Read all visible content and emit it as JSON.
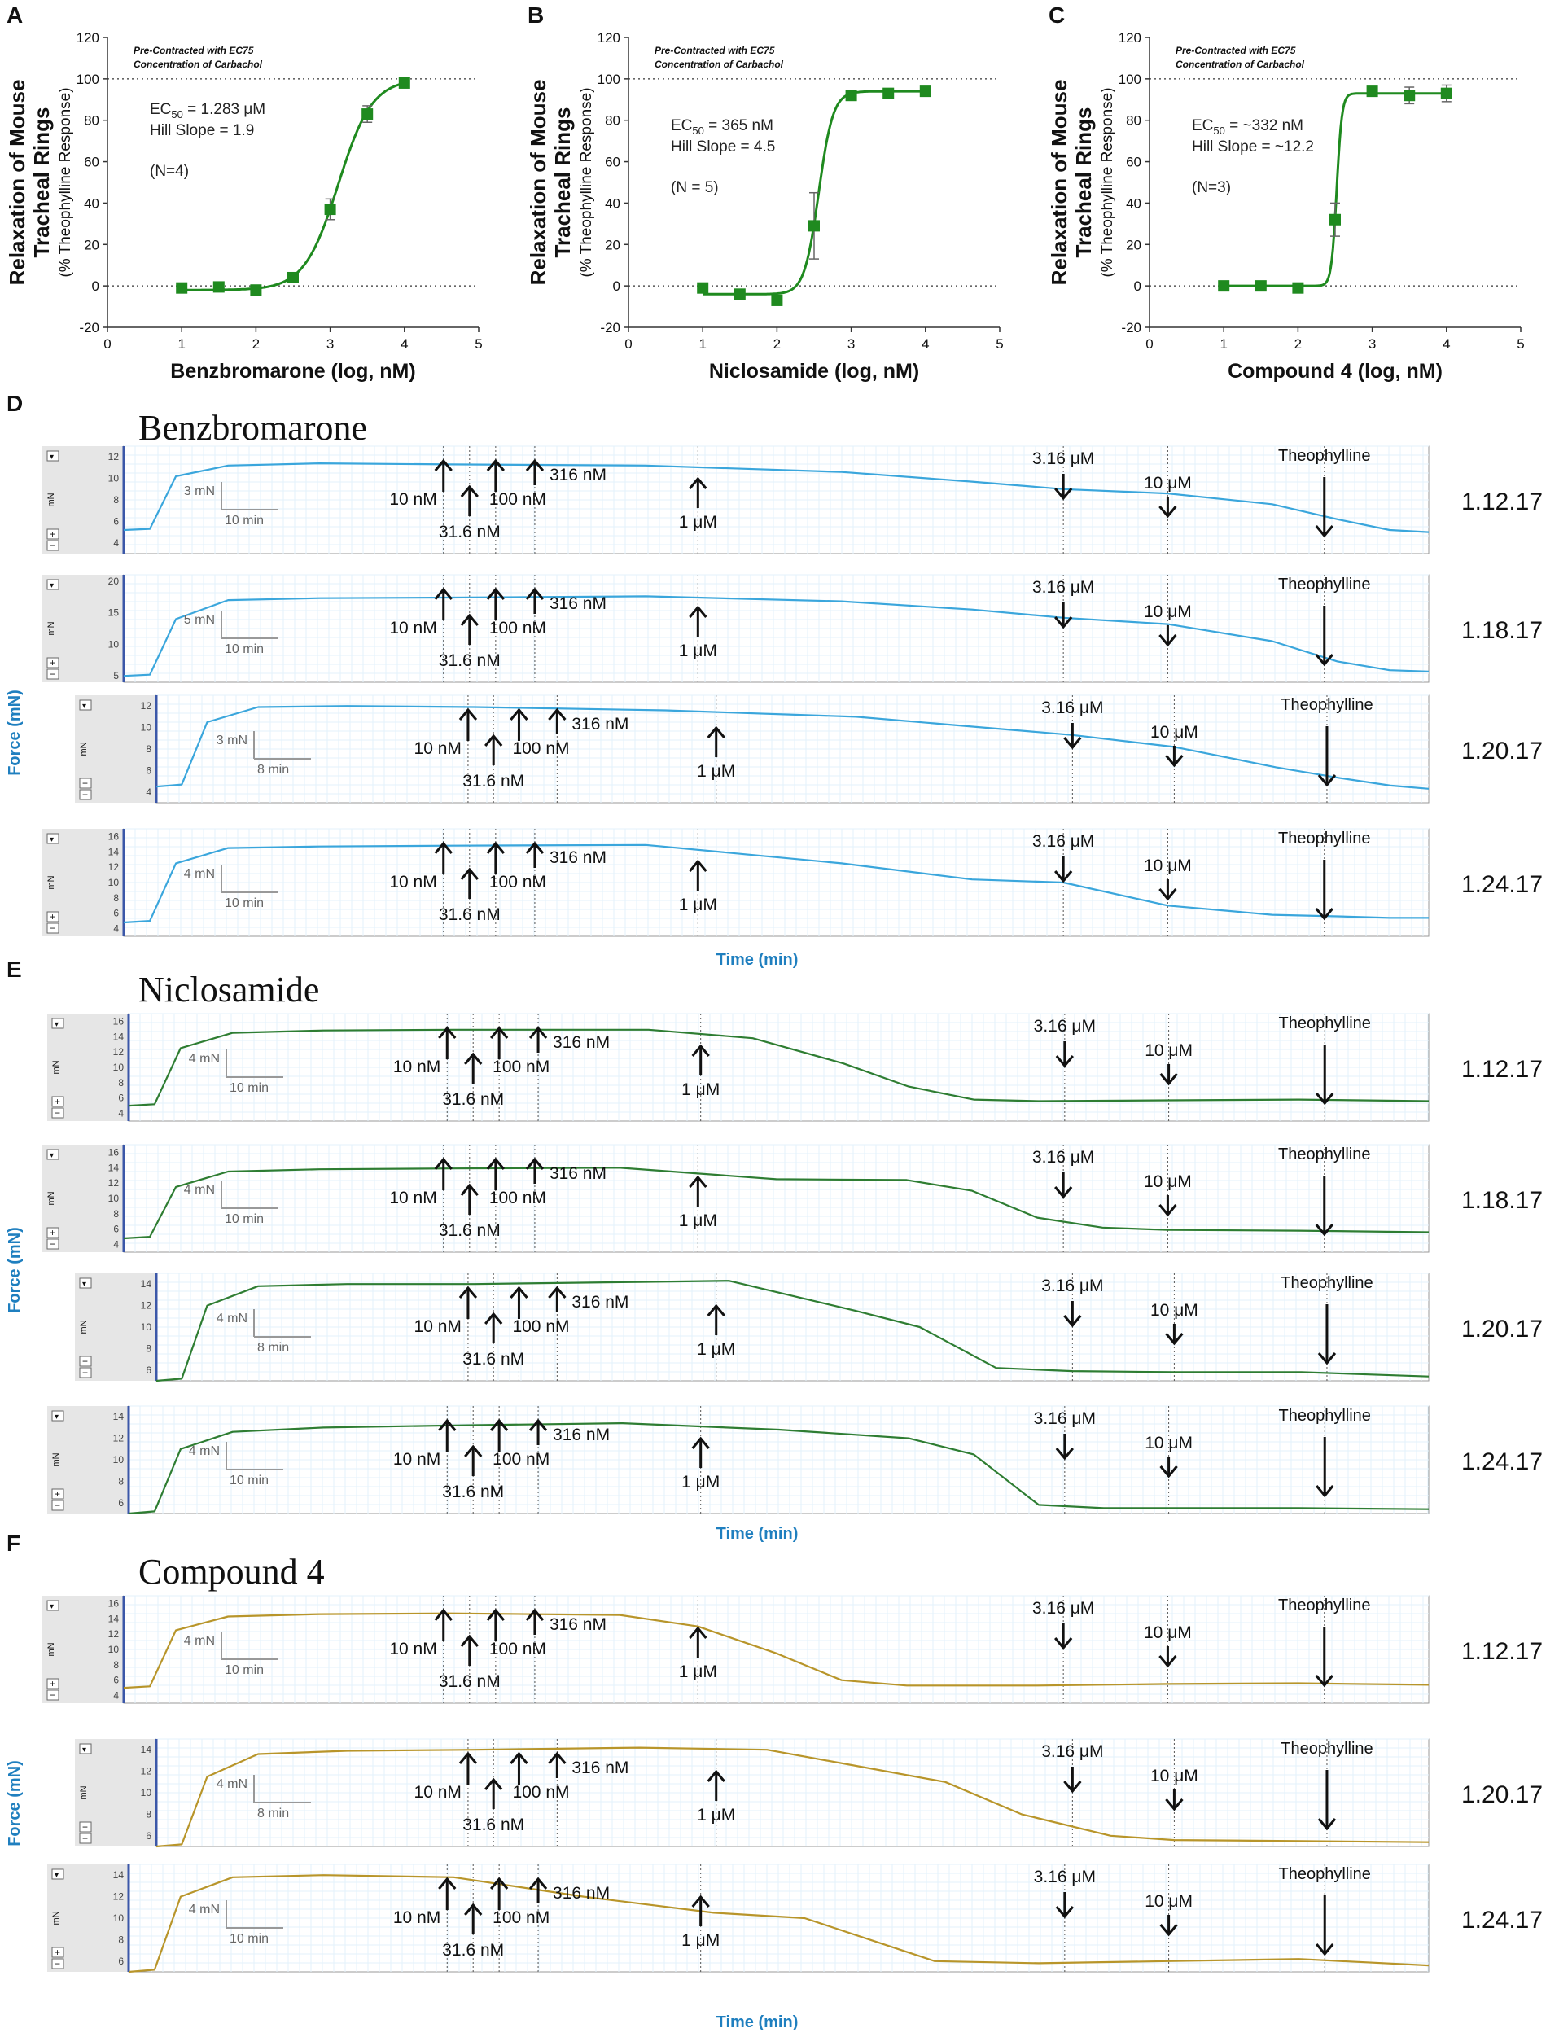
{
  "colors": {
    "green": "#1f8a1f",
    "marker": "#1f8a1f",
    "blue": "#3aa6dc",
    "trace_green": "#2e7d32",
    "trace_gold": "#b8952a",
    "axis_blue": "#1f7fbf",
    "grid": "#e3f2fb",
    "panel_gray": "#e6e6e6"
  },
  "panels": {
    "A": {
      "letter": "A"
    },
    "B": {
      "letter": "B"
    },
    "C": {
      "letter": "C"
    },
    "D": {
      "letter": "D",
      "title": "Benzbromarone"
    },
    "E": {
      "letter": "E",
      "title": "Niclosamide"
    },
    "F": {
      "letter": "F",
      "title": "Compound 4"
    }
  },
  "common": {
    "ylabel_line1": "Relaxation of Mouse",
    "ylabel_line2": "Tracheal Rings",
    "ylabel_line3": "(% Theophylline Response)",
    "precontract_line1": "Pre-Contracted with EC75",
    "precontract_line2": "Concentration of Carbachol",
    "trace_ylabel": "Force (mN)",
    "trace_xlabel": "Time (min)",
    "unit_mn": "mN",
    "plus": "+",
    "minus": "−",
    "dropdown": "▾",
    "theophylline": "Theophylline"
  },
  "doses": [
    "10 nM",
    "31.6 nM",
    "100 nM",
    "316 nM",
    "1 μM",
    "3.16 μM",
    "10 μM"
  ],
  "chart_data": [
    {
      "type": "scatter",
      "id": "A",
      "title": "",
      "xlabel": "Benzbromarone (log, nM)",
      "ylabel": "Relaxation of Mouse Tracheal Rings (% Theophylline Response)",
      "xlim": [
        0,
        5
      ],
      "ylim": [
        -20,
        120
      ],
      "xticks": [
        0,
        1,
        2,
        3,
        4,
        5
      ],
      "yticks": [
        -20,
        0,
        20,
        40,
        60,
        80,
        100,
        120
      ],
      "points": [
        {
          "x": 1.0,
          "y": -1,
          "err": 1
        },
        {
          "x": 1.5,
          "y": -0.5,
          "err": 1
        },
        {
          "x": 2.0,
          "y": -2,
          "err": 1
        },
        {
          "x": 2.5,
          "y": 4,
          "err": 1
        },
        {
          "x": 3.0,
          "y": 37,
          "err": 5
        },
        {
          "x": 3.5,
          "y": 83,
          "err": 4
        },
        {
          "x": 4.0,
          "y": 98,
          "err": 1
        }
      ],
      "fit": {
        "bottom": -2,
        "top": 100,
        "logEC50": 3.108,
        "hill": 1.9
      },
      "ref_lines": [
        0,
        100
      ],
      "annotation": {
        "ec50_label": "EC",
        "ec50_sub": "50",
        "ec50_value": " = 1.283 μM",
        "hill": "Hill Slope = 1.9",
        "n": "(N=4)"
      }
    },
    {
      "type": "scatter",
      "id": "B",
      "title": "",
      "xlabel": "Niclosamide (log, nM)",
      "ylabel": "Relaxation of Mouse Tracheal Rings (% Theophylline Response)",
      "xlim": [
        0,
        5
      ],
      "ylim": [
        -20,
        120
      ],
      "xticks": [
        0,
        1,
        2,
        3,
        4,
        5
      ],
      "yticks": [
        -20,
        0,
        20,
        40,
        60,
        80,
        100,
        120
      ],
      "points": [
        {
          "x": 1.0,
          "y": -1,
          "err": 2
        },
        {
          "x": 1.5,
          "y": -4,
          "err": 2
        },
        {
          "x": 2.0,
          "y": -7,
          "err": 2
        },
        {
          "x": 2.5,
          "y": 29,
          "err": 16
        },
        {
          "x": 3.0,
          "y": 92,
          "err": 2
        },
        {
          "x": 3.5,
          "y": 93,
          "err": 1
        },
        {
          "x": 4.0,
          "y": 94,
          "err": 1
        }
      ],
      "fit": {
        "bottom": -4,
        "top": 94,
        "logEC50": 2.562,
        "hill": 4.5
      },
      "ref_lines": [
        0,
        100
      ],
      "annotation": {
        "ec50_label": "EC",
        "ec50_sub": "50",
        "ec50_value": " = 365 nM",
        "hill": "Hill Slope = 4.5",
        "n": "(N = 5)"
      }
    },
    {
      "type": "scatter",
      "id": "C",
      "title": "",
      "xlabel": "Compound 4 (log, nM)",
      "ylabel": "Relaxation of Mouse Tracheal Rings (% Theophylline Response)",
      "xlim": [
        0,
        5
      ],
      "ylim": [
        -20,
        120
      ],
      "xticks": [
        0,
        1,
        2,
        3,
        4,
        5
      ],
      "yticks": [
        -20,
        0,
        20,
        40,
        60,
        80,
        100,
        120
      ],
      "points": [
        {
          "x": 1.0,
          "y": 0,
          "err": 1
        },
        {
          "x": 1.5,
          "y": 0,
          "err": 1
        },
        {
          "x": 2.0,
          "y": -1,
          "err": 1
        },
        {
          "x": 2.5,
          "y": 32,
          "err": 8
        },
        {
          "x": 3.0,
          "y": 94,
          "err": 1
        },
        {
          "x": 3.5,
          "y": 92,
          "err": 4
        },
        {
          "x": 4.0,
          "y": 93,
          "err": 4
        }
      ],
      "fit": {
        "bottom": 0,
        "top": 93,
        "logEC50": 2.521,
        "hill": 12.2
      },
      "ref_lines": [
        0,
        100
      ],
      "annotation": {
        "ec50_label": "EC",
        "ec50_sub": "50",
        "ec50_value": " = ~332 nM",
        "hill": "Hill Slope = ~12.2",
        "n": "(N=3)"
      }
    },
    {
      "type": "line",
      "id": "D",
      "title": "Benzbromarone",
      "ylabel": "Force (mN)",
      "xlabel": "Time (min)",
      "traces": [
        {
          "date": "1.12.17",
          "yticks": [
            4,
            6,
            8,
            10,
            12
          ],
          "scale_y": "3 mN",
          "scale_x": "10 min",
          "theo": "Theophylline",
          "x": [
            0,
            2,
            4,
            8,
            15,
            25,
            40,
            55,
            65,
            72,
            80,
            88,
            93,
            97,
            100
          ],
          "y": [
            5.2,
            5.3,
            10.2,
            11.2,
            11.4,
            11.3,
            11.2,
            10.6,
            9.7,
            9.0,
            8.6,
            7.6,
            6.2,
            5.2,
            5.0
          ]
        },
        {
          "date": "1.18.17",
          "yticks": [
            5,
            10,
            15,
            20
          ],
          "scale_y": "5 mN",
          "scale_x": "10 min",
          "theo": "Theophylline",
          "x": [
            0,
            2,
            4,
            8,
            15,
            25,
            40,
            55,
            65,
            72,
            80,
            88,
            93,
            97,
            100
          ],
          "y": [
            5.0,
            5.2,
            14.0,
            17.0,
            17.3,
            17.4,
            17.6,
            16.8,
            15.5,
            14.2,
            13.2,
            10.5,
            7.3,
            5.9,
            5.7
          ]
        },
        {
          "date": "1.20.17",
          "yticks": [
            4,
            6,
            8,
            10,
            12
          ],
          "scale_y": "3 mN",
          "scale_x": "8 min",
          "theo": "Theophylline",
          "x": [
            0,
            2,
            4,
            8,
            15,
            25,
            40,
            55,
            65,
            72,
            80,
            88,
            93,
            97,
            100
          ],
          "y": [
            4.5,
            4.7,
            10.5,
            11.9,
            12.0,
            11.9,
            11.6,
            11.0,
            10.0,
            9.3,
            8.2,
            6.3,
            5.3,
            4.6,
            4.3
          ]
        },
        {
          "date": "1.24.17",
          "yticks": [
            4,
            6,
            8,
            10,
            12,
            14,
            16
          ],
          "scale_y": "4 mN",
          "scale_x": "10 min",
          "theo": "Theophylline",
          "x": [
            0,
            2,
            4,
            8,
            15,
            25,
            40,
            55,
            65,
            72,
            80,
            88,
            93,
            97,
            100
          ],
          "y": [
            4.8,
            5.0,
            12.5,
            14.5,
            14.7,
            14.8,
            14.9,
            12.5,
            10.4,
            10.0,
            7.0,
            5.8,
            5.6,
            5.4,
            5.4
          ]
        }
      ]
    },
    {
      "type": "line",
      "id": "E",
      "title": "Niclosamide",
      "ylabel": "Force (mN)",
      "xlabel": "Time (min)",
      "traces": [
        {
          "date": "1.12.17",
          "yticks": [
            4,
            6,
            8,
            10,
            12,
            14,
            16
          ],
          "scale_y": "4 mN",
          "scale_x": "10 min",
          "theo": "Theophylline",
          "x": [
            0,
            2,
            4,
            8,
            15,
            25,
            40,
            48,
            55,
            60,
            65,
            70,
            80,
            90,
            100
          ],
          "y": [
            5.0,
            5.2,
            12.5,
            14.5,
            14.8,
            14.9,
            14.9,
            13.8,
            10.5,
            7.5,
            5.8,
            5.6,
            5.7,
            5.8,
            5.6
          ]
        },
        {
          "date": "1.18.17",
          "yticks": [
            4,
            6,
            8,
            10,
            12,
            14,
            16
          ],
          "scale_y": "4 mN",
          "scale_x": "10 min",
          "theo": "Theophylline",
          "x": [
            0,
            2,
            4,
            8,
            15,
            25,
            38,
            50,
            60,
            65,
            70,
            75,
            80,
            90,
            100
          ],
          "y": [
            4.8,
            5.0,
            11.5,
            13.5,
            13.8,
            13.9,
            14.0,
            12.5,
            12.4,
            11.0,
            7.5,
            6.2,
            5.9,
            5.8,
            5.6
          ]
        },
        {
          "date": "1.20.17",
          "yticks": [
            6,
            8,
            10,
            12,
            14
          ],
          "scale_y": "4 mN",
          "scale_x": "8 min",
          "theo": "Theophylline",
          "x": [
            0,
            2,
            4,
            8,
            15,
            25,
            38,
            45,
            55,
            60,
            66,
            72,
            80,
            90,
            100
          ],
          "y": [
            5.0,
            5.2,
            12.0,
            13.8,
            14.0,
            14.0,
            14.2,
            14.3,
            11.5,
            10.0,
            6.2,
            5.9,
            5.8,
            5.8,
            5.4
          ]
        },
        {
          "date": "1.24.17",
          "yticks": [
            6,
            8,
            10,
            12,
            14
          ],
          "scale_y": "4 mN",
          "scale_x": "10 min",
          "theo": "Theophylline",
          "x": [
            0,
            2,
            4,
            8,
            15,
            25,
            38,
            50,
            60,
            65,
            70,
            75,
            80,
            90,
            100
          ],
          "y": [
            5.0,
            5.2,
            11.0,
            12.6,
            13.0,
            13.2,
            13.4,
            12.8,
            12.0,
            10.5,
            5.8,
            5.5,
            5.5,
            5.5,
            5.4
          ]
        }
      ]
    },
    {
      "type": "line",
      "id": "F",
      "title": "Compound 4",
      "ylabel": "Force (mN)",
      "xlabel": "Time (min)",
      "traces": [
        {
          "date": "1.12.17",
          "yticks": [
            4,
            6,
            8,
            10,
            12,
            14,
            16
          ],
          "scale_y": "4 mN",
          "scale_x": "10 min",
          "theo": "Theophylline",
          "x": [
            0,
            2,
            4,
            8,
            15,
            25,
            38,
            44,
            50,
            55,
            60,
            70,
            80,
            90,
            100
          ],
          "y": [
            5.0,
            5.2,
            12.5,
            14.3,
            14.6,
            14.7,
            14.5,
            13.0,
            9.5,
            6.0,
            5.3,
            5.3,
            5.5,
            5.6,
            5.4
          ]
        },
        {
          "date": "1.20.17",
          "yticks": [
            6,
            8,
            10,
            12,
            14
          ],
          "scale_y": "4 mN",
          "scale_x": "8 min",
          "theo": "Theophylline",
          "x": [
            0,
            2,
            4,
            8,
            15,
            25,
            38,
            48,
            55,
            62,
            68,
            75,
            80,
            90,
            100
          ],
          "y": [
            5.0,
            5.2,
            11.5,
            13.6,
            13.9,
            14.0,
            14.2,
            14.0,
            12.5,
            11.0,
            8.0,
            6.0,
            5.6,
            5.5,
            5.4
          ]
        },
        {
          "date": "1.24.17",
          "yticks": [
            6,
            8,
            10,
            12,
            14
          ],
          "scale_y": "4 mN",
          "scale_x": "10 min",
          "theo": "Theophylline",
          "x": [
            0,
            2,
            4,
            8,
            15,
            25,
            35,
            45,
            52,
            57,
            62,
            70,
            80,
            90,
            100
          ],
          "y": [
            5.0,
            5.2,
            12.0,
            13.8,
            14.0,
            13.8,
            12.0,
            10.5,
            10.0,
            8.0,
            6.0,
            5.8,
            6.0,
            6.2,
            5.6
          ]
        }
      ]
    }
  ]
}
